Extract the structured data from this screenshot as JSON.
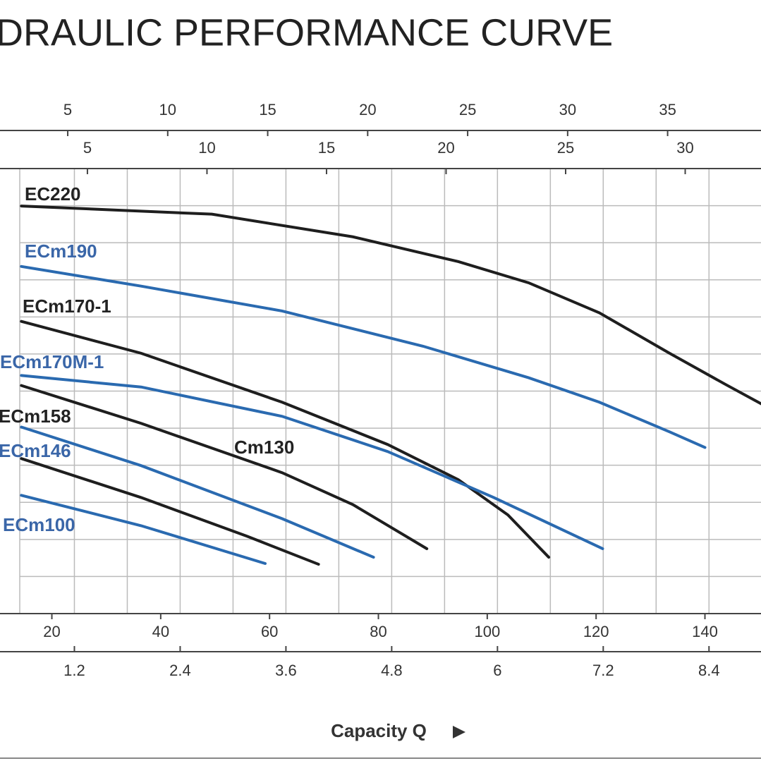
{
  "chart_data": {
    "type": "line",
    "title": "DRAULIC PERFORMANCE CURVE",
    "x_label": "Capacity Q",
    "xlim": [
      14.1,
      150.3
    ],
    "xticks": [
      20,
      40,
      60,
      80,
      100,
      120,
      140
    ],
    "ylim": [
      0,
      12
    ],
    "ygrid": [
      1,
      2,
      3,
      4,
      5,
      6,
      7,
      8,
      9,
      10,
      11
    ],
    "grid": true,
    "extra_x_axes": [
      {
        "position": "bottom",
        "xlim": [
          0.58,
          8.99
        ],
        "xticks": [
          1.2,
          2.4,
          3.6,
          4.8,
          6.0,
          7.2,
          8.4
        ],
        "grid": [
          1.2,
          1.8,
          2.4,
          3.0,
          3.6,
          4.2,
          4.8,
          5.4,
          6.0,
          6.6,
          7.2,
          7.8,
          8.4
        ]
      },
      {
        "position": "top",
        "xlim": [
          2.6,
          39.67
        ],
        "xticks": [
          5,
          10,
          15,
          20,
          25,
          30,
          35
        ]
      },
      {
        "position": "top",
        "xlim": [
          2.17,
          33.17
        ],
        "xticks": [
          5,
          10,
          15,
          20,
          25,
          30
        ]
      }
    ],
    "series": [
      {
        "name": "EC220",
        "color": "#1e1e1e",
        "x": [
          14.4,
          49.4,
          75.3,
          94.7,
          107.6,
          120.6,
          133.5,
          143.9,
          150.3
        ],
        "values": [
          10.99,
          10.77,
          10.16,
          9.49,
          8.92,
          8.11,
          7.02,
          6.17,
          5.66
        ]
      },
      {
        "name": "ECm190",
        "color": "#2a6ab0",
        "x": [
          14.4,
          36.4,
          62.3,
          88.2,
          107.6,
          120.6,
          133.5,
          140.0
        ],
        "values": [
          9.36,
          8.83,
          8.16,
          7.21,
          6.36,
          5.7,
          4.9,
          4.48
        ]
      },
      {
        "name": "ECm170-1",
        "color": "#1e1e1e",
        "x": [
          14.4,
          36.4,
          62.3,
          81.7,
          94.7,
          103.8,
          111.3
        ],
        "values": [
          7.88,
          7.02,
          5.7,
          4.56,
          3.61,
          2.66,
          1.52
        ]
      },
      {
        "name": "ECm170M-1",
        "color": "#2a6ab0",
        "x": [
          14.4,
          36.4,
          62.3,
          81.7,
          101.2,
          121.2
        ],
        "values": [
          6.42,
          6.11,
          5.32,
          4.37,
          3.13,
          1.75
        ]
      },
      {
        "name": "ECm158",
        "color": "#1e1e1e",
        "x": [
          14.4,
          36.4,
          62.3,
          75.3,
          88.9
        ],
        "values": [
          6.15,
          5.13,
          3.8,
          2.94,
          1.75
        ]
      },
      {
        "name": "ECm146",
        "color": "#2a6ab0",
        "x": [
          14.4,
          36.4,
          62.3,
          79.1
        ],
        "values": [
          5.03,
          3.99,
          2.56,
          1.52
        ]
      },
      {
        "name": "Cm130",
        "color": "#1e1e1e",
        "x": [
          14.4,
          36.4,
          55.8,
          69.0
        ],
        "values": [
          4.18,
          3.13,
          2.09,
          1.33
        ]
      },
      {
        "name": "ECm100",
        "color": "#2a6ab0",
        "x": [
          14.4,
          36.4,
          59.2
        ],
        "values": [
          3.19,
          2.37,
          1.35
        ]
      }
    ]
  }
}
